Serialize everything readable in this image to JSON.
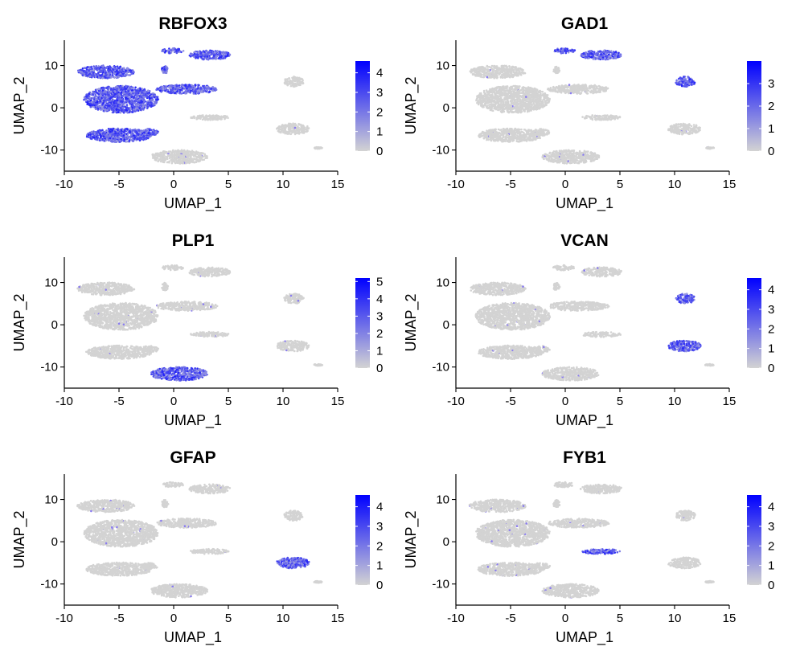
{
  "chart_data": [
    {
      "type": "scatter",
      "title": "RBFOX3",
      "xlabel": "UMAP_1",
      "ylabel": "UMAP_2",
      "xlim": [
        -10,
        15
      ],
      "ylim": [
        -15,
        16
      ],
      "xticks": [
        "-10",
        "-5",
        "0",
        "5",
        "10",
        "15"
      ],
      "yticks": [
        "-10",
        "0",
        "10"
      ],
      "legend": {
        "ticks": [
          "0",
          "1",
          "2",
          "3",
          "4"
        ],
        "max": 4.6,
        "colors": [
          "#d3d3d3",
          "#0000ff"
        ]
      },
      "highlight": [
        0,
        1,
        2,
        3,
        4,
        5,
        6,
        7
      ]
    },
    {
      "type": "scatter",
      "title": "GAD1",
      "xlabel": "UMAP_1",
      "ylabel": "UMAP_2",
      "xlim": [
        -10,
        15
      ],
      "ylim": [
        -15,
        16
      ],
      "xticks": [
        "-10",
        "-5",
        "0",
        "5",
        "10",
        "15"
      ],
      "yticks": [
        "-10",
        "0",
        "10"
      ],
      "legend": {
        "ticks": [
          "0",
          "1",
          "2",
          "3"
        ],
        "max": 4.0,
        "colors": [
          "#d3d3d3",
          "#0000ff"
        ]
      },
      "highlight": [
        1,
        2,
        10
      ]
    },
    {
      "type": "scatter",
      "title": "PLP1",
      "xlabel": "UMAP_1",
      "ylabel": "UMAP_2",
      "xlim": [
        -10,
        15
      ],
      "ylim": [
        -15,
        16
      ],
      "xticks": [
        "-10",
        "-5",
        "0",
        "5",
        "10",
        "15"
      ],
      "yticks": [
        "-10",
        "0",
        "10"
      ],
      "legend": {
        "ticks": [
          "0",
          "1",
          "2",
          "3",
          "4",
          "5"
        ],
        "max": 5.2,
        "colors": [
          "#d3d3d3",
          "#0000ff"
        ]
      },
      "highlight": [
        8
      ]
    },
    {
      "type": "scatter",
      "title": "VCAN",
      "xlabel": "UMAP_1",
      "ylabel": "UMAP_2",
      "xlim": [
        -10,
        15
      ],
      "ylim": [
        -15,
        16
      ],
      "xticks": [
        "-10",
        "-5",
        "0",
        "5",
        "10",
        "15"
      ],
      "yticks": [
        "-10",
        "0",
        "10"
      ],
      "legend": {
        "ticks": [
          "0",
          "1",
          "2",
          "3",
          "4"
        ],
        "max": 4.6,
        "colors": [
          "#d3d3d3",
          "#0000ff"
        ]
      },
      "highlight": [
        10,
        11
      ]
    },
    {
      "type": "scatter",
      "title": "GFAP",
      "xlabel": "UMAP_1",
      "ylabel": "UMAP_2",
      "xlim": [
        -10,
        15
      ],
      "ylim": [
        -15,
        16
      ],
      "xticks": [
        "-10",
        "-5",
        "0",
        "5",
        "10",
        "15"
      ],
      "yticks": [
        "-10",
        "0",
        "10"
      ],
      "legend": {
        "ticks": [
          "0",
          "1",
          "2",
          "3",
          "4"
        ],
        "max": 4.6,
        "colors": [
          "#d3d3d3",
          "#0000ff"
        ]
      },
      "highlight": [
        11
      ]
    },
    {
      "type": "scatter",
      "title": "FYB1",
      "xlabel": "UMAP_1",
      "ylabel": "UMAP_2",
      "xlim": [
        -10,
        15
      ],
      "ylim": [
        -15,
        16
      ],
      "xticks": [
        "-10",
        "-5",
        "0",
        "5",
        "10",
        "15"
      ],
      "yticks": [
        "-10",
        "0",
        "10"
      ],
      "legend": {
        "ticks": [
          "0",
          "1",
          "2",
          "3",
          "4"
        ],
        "max": 4.6,
        "colors": [
          "#d3d3d3",
          "#0000ff"
        ]
      },
      "highlight": [
        9
      ]
    }
  ],
  "clusters": [
    {
      "id": 0,
      "name": "upper-left",
      "cx": -6.2,
      "cy": 8.5,
      "rx": 2.6,
      "ry": 1.5
    },
    {
      "id": 1,
      "name": "top-middle-left",
      "cx": -0.1,
      "cy": 13.5,
      "rx": 1.0,
      "ry": 0.6
    },
    {
      "id": 2,
      "name": "top-middle-right",
      "cx": 3.3,
      "cy": 12.5,
      "rx": 1.9,
      "ry": 1.1
    },
    {
      "id": 3,
      "name": "large-center",
      "cx": -4.8,
      "cy": 2.0,
      "rx": 3.4,
      "ry": 3.2
    },
    {
      "id": 4,
      "name": "center-tail",
      "cx": 1.2,
      "cy": 4.4,
      "rx": 2.8,
      "ry": 1.1
    },
    {
      "id": 5,
      "name": "left-lower",
      "cx": -5.0,
      "cy": -6.5,
      "rx": 3.0,
      "ry": 1.6
    },
    {
      "id": 6,
      "name": "left-lower-tail",
      "cx": -2.2,
      "cy": -5.8,
      "rx": 0.8,
      "ry": 0.8
    },
    {
      "id": 7,
      "name": "small-strip",
      "cx": -0.8,
      "cy": 9.0,
      "rx": 0.3,
      "ry": 0.9
    },
    {
      "id": 8,
      "name": "bottom-center",
      "cx": 0.5,
      "cy": -11.6,
      "rx": 2.6,
      "ry": 1.6
    },
    {
      "id": 9,
      "name": "middle-right-small",
      "cx": 3.3,
      "cy": -2.3,
      "rx": 1.8,
      "ry": 0.6
    },
    {
      "id": 10,
      "name": "right-top",
      "cx": 11.0,
      "cy": 6.2,
      "rx": 0.9,
      "ry": 1.2
    },
    {
      "id": 11,
      "name": "right-middle",
      "cx": 10.9,
      "cy": -5.0,
      "rx": 1.5,
      "ry": 1.3
    },
    {
      "id": 12,
      "name": "far-right-tiny",
      "cx": 13.2,
      "cy": -9.5,
      "rx": 0.4,
      "ry": 0.2
    }
  ]
}
